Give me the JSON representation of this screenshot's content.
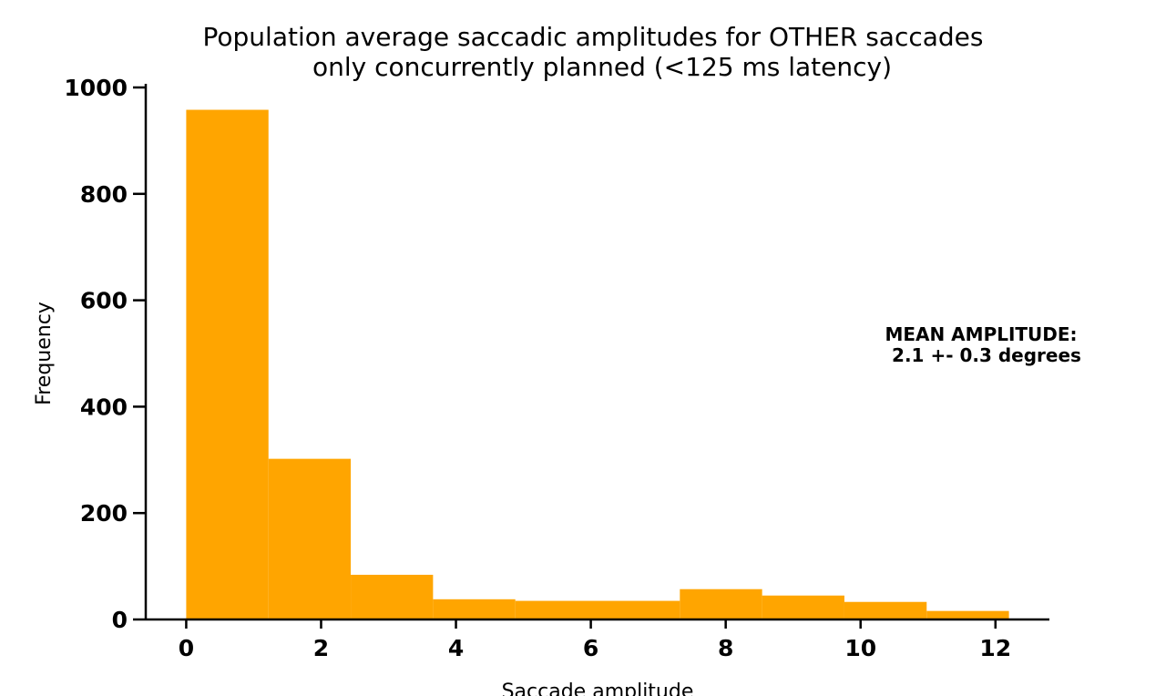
{
  "chart_data": {
    "type": "bar",
    "title_line1": "Population average saccadic amplitudes for OTHER saccades",
    "title_line2": "only concurrently planned (<125 ms latency)",
    "xlabel": "Saccade amplitude",
    "ylabel": "Frequency",
    "bin_edges": [
      0,
      1.22,
      2.44,
      3.66,
      4.88,
      6.1,
      7.32,
      8.54,
      9.76,
      10.98,
      12.2
    ],
    "values": [
      958,
      302,
      84,
      38,
      35,
      35,
      57,
      45,
      33,
      16
    ],
    "xlim": [
      -0.6,
      12.8
    ],
    "ylim": [
      0,
      1000
    ],
    "x_ticks": [
      0,
      2,
      4,
      6,
      8,
      10,
      12
    ],
    "y_ticks": [
      0,
      200,
      400,
      600,
      800,
      1000
    ],
    "bar_color": "#ffa500",
    "grid": false,
    "annotation_line1": "MEAN AMPLITUDE:",
    "annotation_line2": "2.1 +- 0.3 degrees"
  }
}
